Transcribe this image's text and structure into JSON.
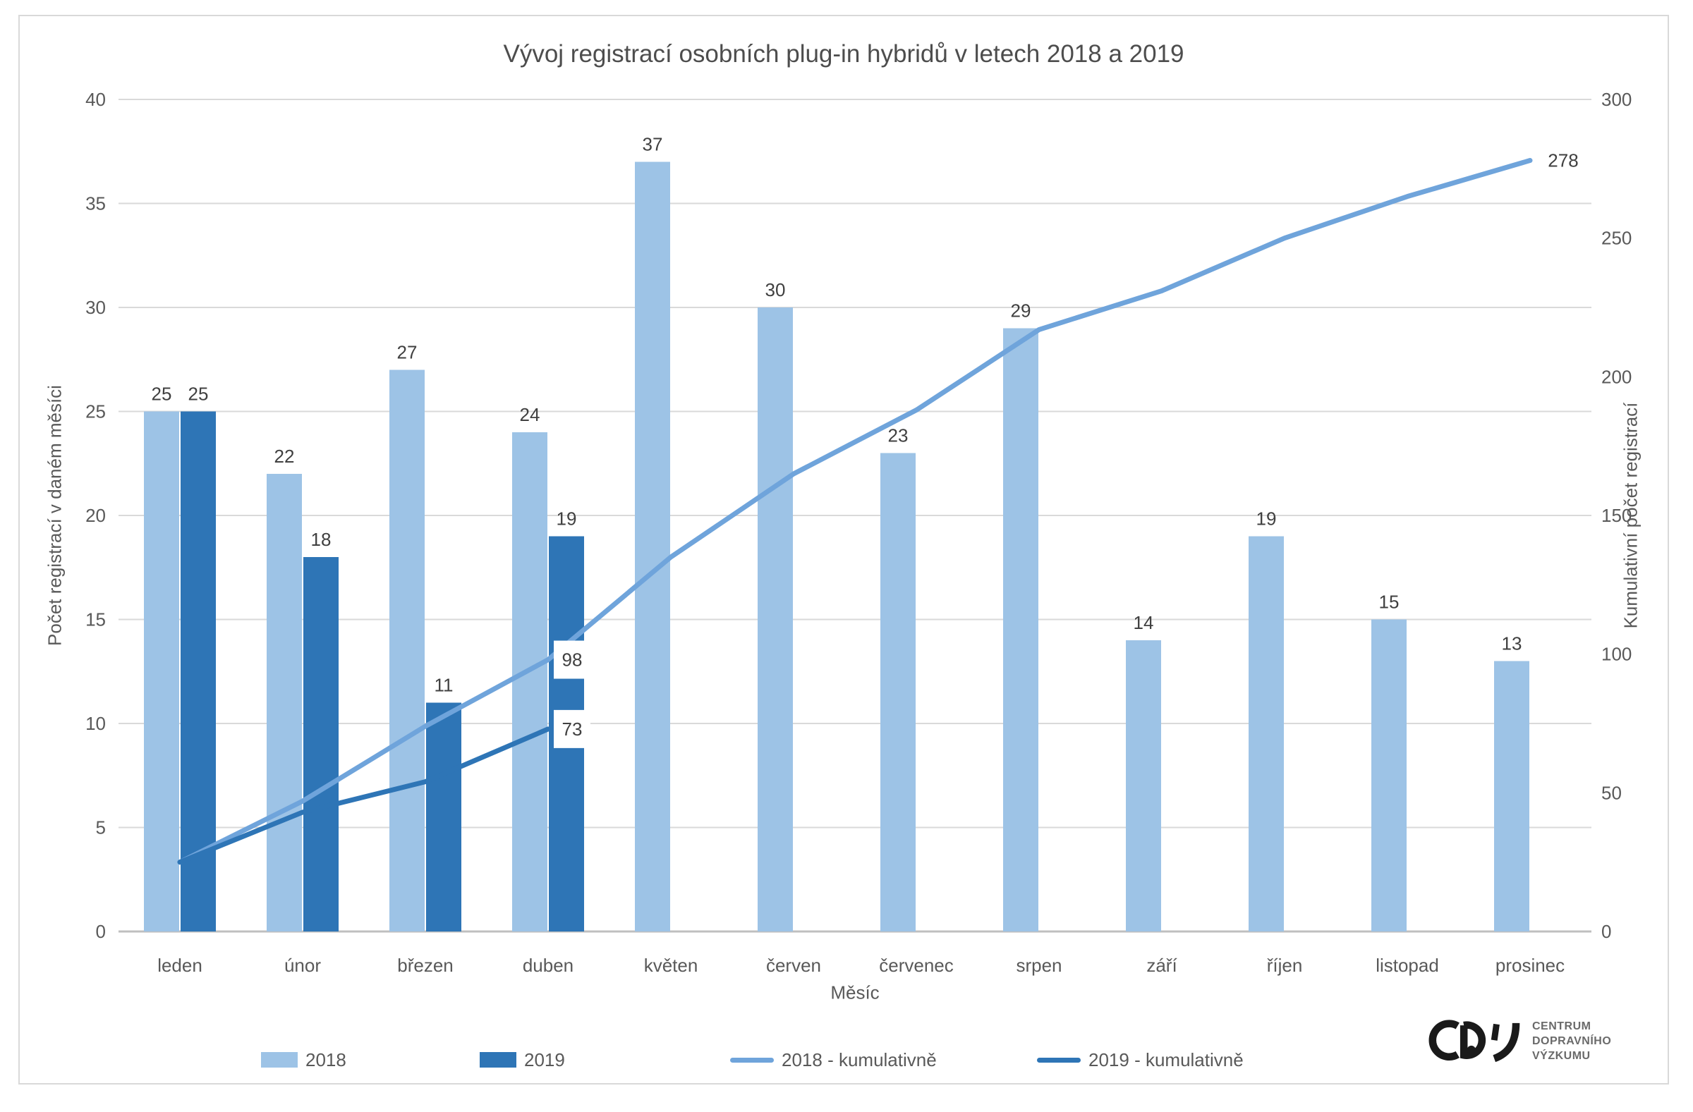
{
  "title": "Vývoj registrací osobních plug-in hybridů v letech 2018 a 2019",
  "chart_data": {
    "type": "bar",
    "subtype": "combo bar + cumulative lines, dual axis",
    "categories": [
      "leden",
      "únor",
      "březen",
      "duben",
      "květen",
      "červen",
      "červenec",
      "srpen",
      "září",
      "říjen",
      "listopad",
      "prosinec"
    ],
    "series": [
      {
        "name": "2018",
        "chart_type": "bar",
        "axis": "left",
        "color": "#9DC3E6",
        "values": [
          25,
          22,
          27,
          24,
          37,
          30,
          23,
          29,
          14,
          19,
          15,
          13
        ]
      },
      {
        "name": "2019",
        "chart_type": "bar",
        "axis": "left",
        "color": "#2E75B6",
        "values": [
          25,
          18,
          11,
          19
        ]
      },
      {
        "name": "2018 - kumulativně",
        "chart_type": "line",
        "axis": "right",
        "color": "#6FA4DB",
        "values": [
          25,
          47,
          74,
          98,
          135,
          165,
          188,
          217,
          231,
          250,
          265,
          278
        ]
      },
      {
        "name": "2019 - kumulativně",
        "chart_type": "line",
        "axis": "right",
        "color": "#2E75B6",
        "values": [
          25,
          43,
          54,
          73
        ]
      }
    ],
    "point_labels": [
      {
        "series": 2,
        "index": 3,
        "text": "98"
      },
      {
        "series": 3,
        "index": 3,
        "text": "73"
      },
      {
        "series": 2,
        "index": 11,
        "text": "278"
      }
    ],
    "bar_labels_visible": true,
    "xlabel": "Měsíc",
    "ylabel_left": "Počet registrací v daném měsíci",
    "ylabel_right": "Kumulativní počet registrací",
    "ylim_left": [
      0,
      40
    ],
    "ytick_left": 5,
    "ylim_right": [
      0,
      300
    ],
    "ytick_right": 50,
    "grid": "horizontal gridlines at left-axis ticks",
    "legend_position": "bottom"
  },
  "legend": {
    "items": [
      {
        "label": "2018",
        "swatch": "bar",
        "color": "#9DC3E6"
      },
      {
        "label": "2019",
        "swatch": "bar",
        "color": "#2E75B6"
      },
      {
        "label": "2018 - kumulativně",
        "swatch": "line",
        "color": "#6FA4DB"
      },
      {
        "label": "2019 - kumulativně",
        "swatch": "line",
        "color": "#2E75B6"
      }
    ]
  },
  "logo": {
    "mark": "CDV",
    "line1": "CENTRUM",
    "line2": "DOPRAVNÍHO",
    "line3": "VÝZKUMU"
  },
  "colors": {
    "bar_2018": "#9DC3E6",
    "bar_2019": "#2E75B6",
    "line_2018": "#6FA4DB",
    "line_2019": "#2E75B6",
    "grid": "#D9D9D9",
    "axis_line": "#BFBFBF",
    "tick_text": "#595959",
    "data_label": "#404040",
    "frame_border": "#D9D9D9",
    "title_text": "#4D4D4D"
  }
}
